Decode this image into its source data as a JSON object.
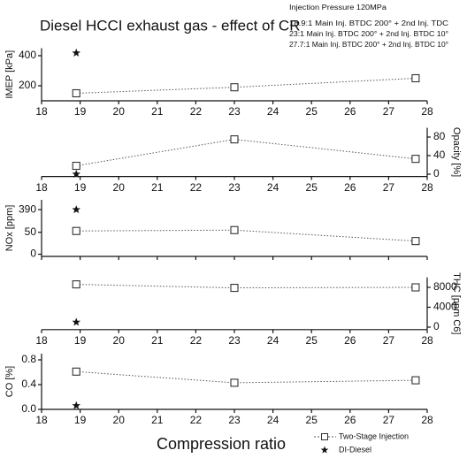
{
  "chart_data": [
    {
      "type": "line",
      "title": "Diesel HCCI exhaust gas - effect of CR",
      "annotation": [
        "Injection Pressure 120MPa",
        "18.9:1 Main Inj. BTDC 200° + 2nd Inj. TDC",
        "23:1 Main Inj. BTDC 200° + 2nd Inj. BTDC 10°",
        "27.7:1 Main Inj. BTDC 200° + 2nd Inj. BTDC 10°"
      ],
      "ylabel": "IMEP [kPa]",
      "y_side": "left",
      "xlim": [
        18,
        28
      ],
      "xticks": [
        18,
        19,
        20,
        21,
        22,
        23,
        24,
        25,
        26,
        27,
        28
      ],
      "ylim": [
        100,
        450
      ],
      "yticks": [
        200,
        400
      ],
      "series": [
        {
          "marker": "square",
          "color": "#333333",
          "x": [
            18.9,
            23,
            27.7
          ],
          "values": [
            150,
            190,
            250
          ]
        },
        {
          "marker": "star",
          "color": "#111111",
          "x": [
            18.9
          ],
          "values": [
            418
          ]
        }
      ]
    },
    {
      "type": "line",
      "ylabel": "Opacity [%]",
      "y_side": "right",
      "xlim": [
        18,
        28
      ],
      "xticks": [
        18,
        19,
        20,
        21,
        22,
        23,
        24,
        25,
        26,
        27,
        28
      ],
      "ylim": [
        -5,
        100
      ],
      "yticks": [
        0,
        40,
        80
      ],
      "series": [
        {
          "marker": "square",
          "color": "#333333",
          "x": [
            18.9,
            23,
            27.7
          ],
          "values": [
            18,
            75,
            33
          ]
        },
        {
          "marker": "star",
          "color": "#111111",
          "x": [
            18.9
          ],
          "values": [
            0
          ]
        }
      ]
    },
    {
      "type": "line",
      "ylabel": "NOx [ppm]",
      "y_side": "left",
      "xlim": [
        18,
        28
      ],
      "xticks": [
        18,
        19,
        20,
        21,
        22,
        23,
        24,
        25,
        26,
        27,
        28
      ],
      "xtick_labels": false,
      "ylim": [
        -5,
        400
      ],
      "y_break": [
        75,
        385
      ],
      "yticks": [
        0,
        50,
        390
      ],
      "series": [
        {
          "marker": "square",
          "color": "#333333",
          "x": [
            18.9,
            23,
            27.7
          ],
          "values": [
            53,
            55,
            30
          ]
        },
        {
          "marker": "star",
          "color": "#111111",
          "x": [
            18.9
          ],
          "values": [
            390
          ]
        }
      ]
    },
    {
      "type": "line",
      "ylabel": "THC [ppm C6]",
      "y_side": "right",
      "xlim": [
        18,
        28
      ],
      "xticks": [
        18,
        19,
        20,
        21,
        22,
        23,
        24,
        25,
        26,
        27,
        28
      ],
      "ylim": [
        -500,
        10000
      ],
      "yticks": [
        0,
        4000,
        8000
      ],
      "series": [
        {
          "marker": "square",
          "color": "#333333",
          "x": [
            18.9,
            23,
            27.7
          ],
          "values": [
            8600,
            7900,
            8000
          ]
        },
        {
          "marker": "star",
          "color": "#111111",
          "x": [
            18.9
          ],
          "values": [
            1000
          ]
        }
      ]
    },
    {
      "type": "line",
      "ylabel": "CO [%]",
      "y_side": "left",
      "xlabel": "Compression ratio",
      "xlim": [
        18,
        28
      ],
      "xticks": [
        18,
        19,
        20,
        21,
        22,
        23,
        24,
        25,
        26,
        27,
        28
      ],
      "ylim": [
        0,
        0.9
      ],
      "yticks": [
        {
          "value": 0,
          "label": "0.0"
        },
        0.4,
        0.8
      ],
      "series": [
        {
          "name": "Two-Stage Injection",
          "marker": "square",
          "color": "#333333",
          "x": [
            18.9,
            23,
            27.7
          ],
          "values": [
            0.61,
            0.43,
            0.47
          ]
        },
        {
          "name": "DI-Diesel",
          "marker": "star",
          "color": "#111111",
          "x": [
            18.9
          ],
          "values": [
            0.06
          ]
        }
      ]
    }
  ]
}
